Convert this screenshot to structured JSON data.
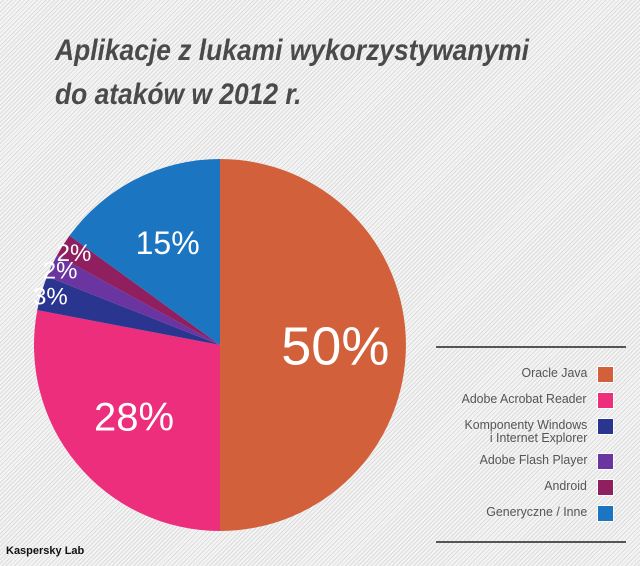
{
  "chart_data": {
    "type": "pie",
    "title": [
      "Aplikacje z lukami wykorzystywanymi",
      "do ataków w 2012 r."
    ],
    "legend_placement": "bottom-right",
    "slices": [
      {
        "name": "Oracle Java",
        "value": 50,
        "label": "50%",
        "color": "#d2603a"
      },
      {
        "name": "Adobe Acrobat Reader",
        "value": 28,
        "label": "28%",
        "color": "#ec2e7c"
      },
      {
        "name": "Komponenty Windows i Internet Explorer",
        "name_lines": [
          "Komponenty Windows",
          "i Internet Explorer"
        ],
        "value": 3,
        "label": "3%",
        "color": "#2a3590"
      },
      {
        "name": "Adobe Flash Player",
        "value": 2,
        "label": "2%",
        "color": "#6a35a0"
      },
      {
        "name": "Android",
        "value": 2,
        "label": "2%",
        "color": "#8f1f5e"
      },
      {
        "name": "Generyczne / Inne",
        "value": 15,
        "label": "15%",
        "color": "#1c75c0"
      }
    ]
  },
  "brand": "Kaspersky Lab"
}
